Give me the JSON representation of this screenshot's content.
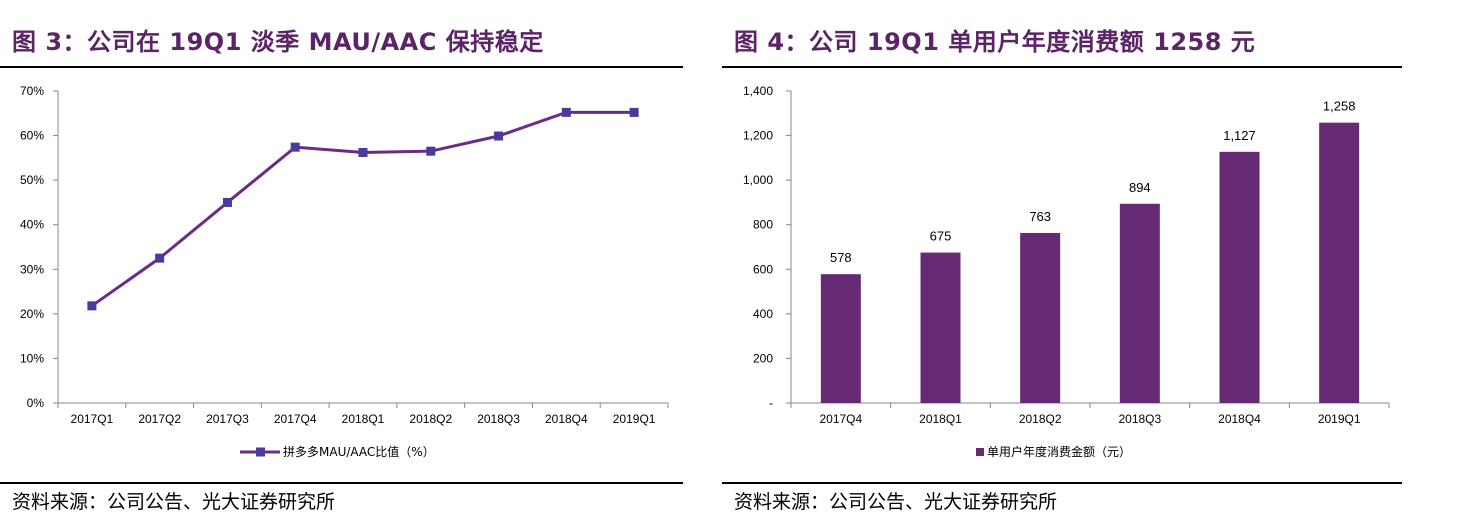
{
  "colors": {
    "accent": "#5b2466",
    "line": "#6a2c86",
    "marker": "#4a3a9a",
    "bar": "#652a73"
  },
  "left": {
    "title": "图 3：公司在 19Q1 淡季 MAU/AAC 保持稳定",
    "source": "资料来源：公司公告、光大证券研究所"
  },
  "right": {
    "title": "图 4：公司 19Q1 单用户年度消费额 1258 元",
    "source": "资料来源：公司公告、光大证券研究所"
  },
  "chart_data": [
    {
      "type": "line",
      "categories": [
        "2017Q1",
        "2017Q2",
        "2017Q3",
        "2017Q4",
        "2018Q1",
        "2018Q2",
        "2018Q3",
        "2018Q4",
        "2019Q1"
      ],
      "series": [
        {
          "name": "拼多多MAU/AAC比值（%）",
          "values": [
            21.8,
            32.5,
            45.0,
            57.4,
            56.2,
            56.5,
            59.9,
            65.2,
            65.2
          ]
        }
      ],
      "ylim": [
        0,
        70
      ],
      "yticks": [
        "0%",
        "10%",
        "20%",
        "30%",
        "40%",
        "50%",
        "60%",
        "70%"
      ],
      "grid": false,
      "legend": "bottom",
      "marker": "square"
    },
    {
      "type": "bar",
      "categories": [
        "2017Q4",
        "2018Q1",
        "2018Q2",
        "2018Q3",
        "2018Q4",
        "2019Q1"
      ],
      "values": [
        578,
        675,
        763,
        894,
        1127,
        1258
      ],
      "data_labels": [
        "578",
        "675",
        "763",
        "894",
        "1,127",
        "1,258"
      ],
      "series": [
        {
          "name": "单用户年度消费金额（元）"
        }
      ],
      "ylim": [
        0,
        1400
      ],
      "yticks": [
        "-",
        "200",
        "400",
        "600",
        "800",
        "1,000",
        "1,200",
        "1,400"
      ],
      "grid": false,
      "legend": "bottom"
    }
  ]
}
